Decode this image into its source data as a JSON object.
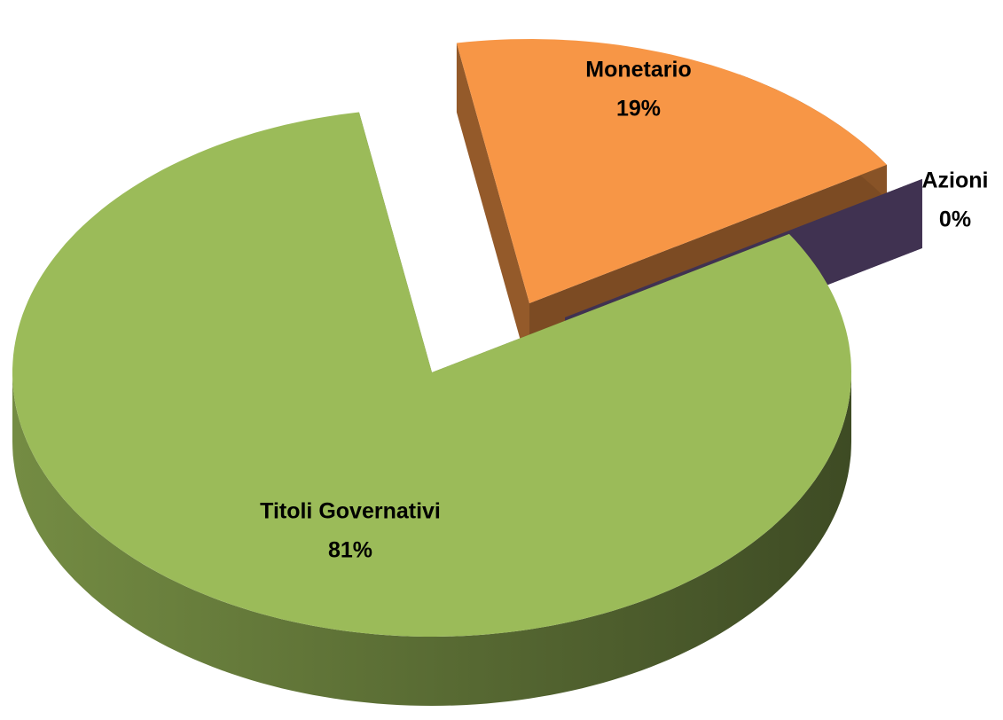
{
  "chart_data": {
    "type": "pie",
    "categories": [
      "Monetario",
      "Azioni",
      "Titoli Governativi"
    ],
    "values": [
      19,
      0,
      81
    ],
    "value_labels": [
      "19%",
      "0%",
      "81%"
    ],
    "colors": [
      "#f79646",
      "#8064a2",
      "#9bbb59"
    ]
  }
}
